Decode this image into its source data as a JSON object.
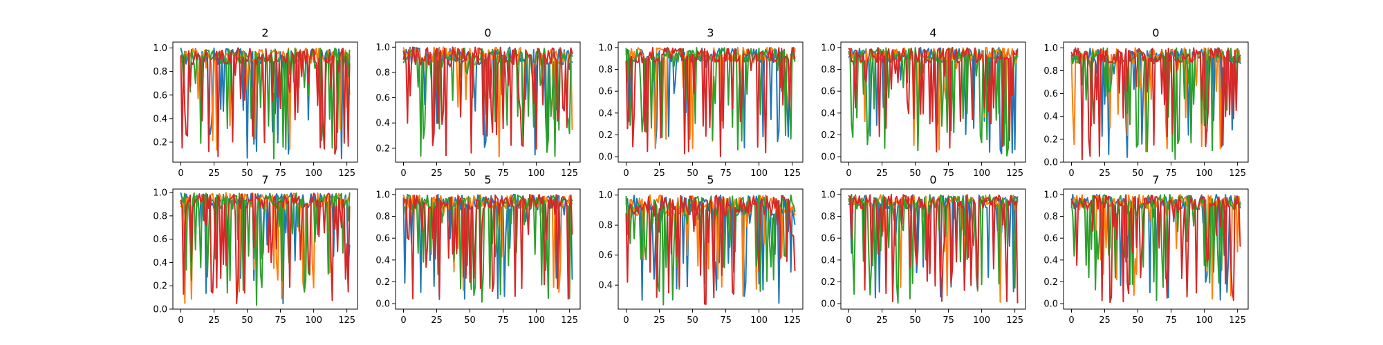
{
  "chart_data": {
    "type": "line",
    "grid": false,
    "colors": [
      "#1f77b4",
      "#ff7f0e",
      "#2ca02c",
      "#d62728"
    ],
    "series_count_per_panel": 4,
    "x_points": 128,
    "xlim": [
      -6,
      133
    ],
    "xticks": [
      0,
      25,
      50,
      75,
      100,
      125
    ],
    "panels": [
      {
        "title": "2",
        "ylim": [
          0.03,
          1.05
        ],
        "yticks": [
          0.2,
          0.4,
          0.6,
          0.8,
          1.0
        ],
        "ytick_labels": [
          "0.2",
          "0.4",
          "0.6",
          "0.8",
          "1.0"
        ]
      },
      {
        "title": "0",
        "ylim": [
          0.09,
          1.04
        ],
        "yticks": [
          0.2,
          0.4,
          0.6,
          0.8,
          1.0
        ],
        "ytick_labels": [
          "0.2",
          "0.4",
          "0.6",
          "0.8",
          "1.0"
        ]
      },
      {
        "title": "3",
        "ylim": [
          -0.05,
          1.05
        ],
        "yticks": [
          0.0,
          0.2,
          0.4,
          0.6,
          0.8,
          1.0
        ],
        "ytick_labels": [
          "0.0",
          "0.2",
          "0.4",
          "0.6",
          "0.8",
          "1.0"
        ]
      },
      {
        "title": "4",
        "ylim": [
          -0.05,
          1.05
        ],
        "yticks": [
          0.0,
          0.2,
          0.4,
          0.6,
          0.8,
          1.0
        ],
        "ytick_labels": [
          "0.0",
          "0.2",
          "0.4",
          "0.6",
          "0.8",
          "1.0"
        ]
      },
      {
        "title": "0",
        "ylim": [
          0.0,
          1.05
        ],
        "yticks": [
          0.0,
          0.2,
          0.4,
          0.6,
          0.8,
          1.0
        ],
        "ytick_labels": [
          "0.0",
          "0.2",
          "0.4",
          "0.6",
          "0.8",
          "1.0"
        ]
      },
      {
        "title": "7",
        "ylim": [
          0.0,
          1.03
        ],
        "yticks": [
          0.0,
          0.2,
          0.4,
          0.6,
          0.8,
          1.0
        ],
        "ytick_labels": [
          "0.0",
          "0.2",
          "0.4",
          "0.6",
          "0.8",
          "1.0"
        ]
      },
      {
        "title": "5",
        "ylim": [
          -0.05,
          1.05
        ],
        "yticks": [
          0.0,
          0.2,
          0.4,
          0.6,
          0.8,
          1.0
        ],
        "ytick_labels": [
          "0.0",
          "0.2",
          "0.4",
          "0.6",
          "0.8",
          "1.0"
        ]
      },
      {
        "title": "5",
        "ylim": [
          0.24,
          1.04
        ],
        "yticks": [
          0.4,
          0.6,
          0.8,
          1.0
        ],
        "ytick_labels": [
          "0.4",
          "0.6",
          "0.8",
          "1.0"
        ]
      },
      {
        "title": "0",
        "ylim": [
          -0.05,
          1.05
        ],
        "yticks": [
          0.0,
          0.2,
          0.4,
          0.6,
          0.8,
          1.0
        ],
        "ytick_labels": [
          "0.0",
          "0.2",
          "0.4",
          "0.6",
          "0.8",
          "1.0"
        ]
      },
      {
        "title": "7",
        "ylim": [
          -0.05,
          1.05
        ],
        "yticks": [
          0.0,
          0.2,
          0.4,
          0.6,
          0.8,
          1.0
        ],
        "ytick_labels": [
          "0.0",
          "0.2",
          "0.4",
          "0.6",
          "0.8",
          "1.0"
        ]
      }
    ]
  }
}
